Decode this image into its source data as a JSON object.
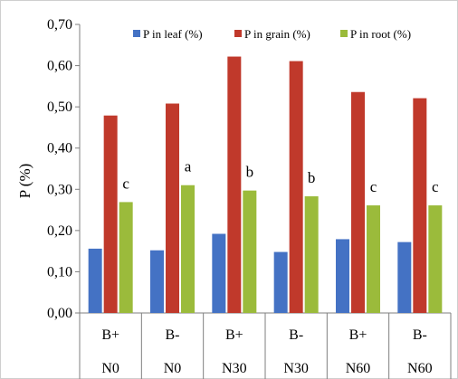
{
  "chart_data": {
    "type": "bar",
    "ylabel": "P (%)",
    "ylim": [
      0,
      0.7
    ],
    "y_ticks": [
      "0,00",
      "0,10",
      "0,20",
      "0,30",
      "0,40",
      "0,50",
      "0,60",
      "0,70"
    ],
    "categories": [
      [
        "B+",
        "N0"
      ],
      [
        "B-",
        "N0"
      ],
      [
        "B+",
        "N30"
      ],
      [
        "B-",
        "N30"
      ],
      [
        "B+",
        "N60"
      ],
      [
        "B-",
        "N60"
      ]
    ],
    "series": [
      {
        "name": "P in leaf (%)",
        "color": "#4472C4",
        "values": [
          0.156,
          0.152,
          0.192,
          0.148,
          0.179,
          0.172
        ]
      },
      {
        "name": "P in grain (%)",
        "color": "#C0392B",
        "values": [
          0.479,
          0.508,
          0.622,
          0.611,
          0.536,
          0.521
        ]
      },
      {
        "name": "P in root (%)",
        "color": "#9BBB3B",
        "values": [
          0.269,
          0.31,
          0.297,
          0.283,
          0.261,
          0.261
        ]
      }
    ],
    "annotations": [
      "c",
      "a",
      "b",
      "b",
      "c",
      "c"
    ],
    "legend": "top-right"
  }
}
